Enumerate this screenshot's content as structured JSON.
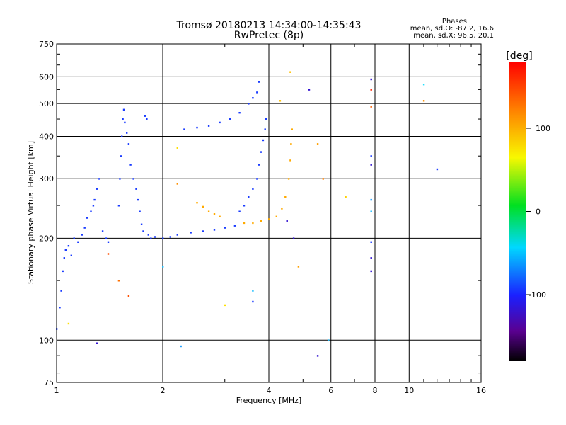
{
  "chart_data": {
    "type": "scatter",
    "title": "Tromsø 20180213 14:34:00-14:35:43",
    "subtitle": "RwPretec (8p)",
    "xlabel": "Frequency [MHz]",
    "ylabel": "Stationary phase Virtual Height [km]",
    "x_scale": "log2",
    "y_scale": "log",
    "xlim": [
      1,
      16
    ],
    "ylim": [
      75,
      750
    ],
    "x_ticks": [
      1,
      2,
      4,
      6,
      8,
      10,
      16
    ],
    "y_ticks": [
      75,
      100,
      200,
      300,
      400,
      500,
      600,
      750
    ],
    "grid": true,
    "legend": {
      "title": "Phases",
      "line1": "mean, sd,O:  -87.2, 16.6",
      "line2": "mean, sd,X:  96.5, 20.1",
      "placement": "top-right"
    },
    "colorbar": {
      "label": "[deg]",
      "range": [
        -180,
        180
      ],
      "ticks": [
        100,
        0,
        -100
      ],
      "colormap": "rainbow"
    },
    "series": [
      {
        "name": "O",
        "color": "#1a3cff",
        "points": [
          [
            1.0,
            108
          ],
          [
            1.02,
            125
          ],
          [
            1.03,
            140
          ],
          [
            1.04,
            160
          ],
          [
            1.05,
            175
          ],
          [
            1.06,
            185
          ],
          [
            1.08,
            190
          ],
          [
            1.1,
            178
          ],
          [
            1.12,
            200
          ],
          [
            1.15,
            195
          ],
          [
            1.18,
            205
          ],
          [
            1.2,
            215
          ],
          [
            1.22,
            230
          ],
          [
            1.25,
            240
          ],
          [
            1.27,
            250
          ],
          [
            1.28,
            260
          ],
          [
            1.3,
            280
          ],
          [
            1.32,
            300
          ],
          [
            1.35,
            210
          ],
          [
            1.38,
            200
          ],
          [
            1.4,
            195
          ],
          [
            1.5,
            250
          ],
          [
            1.51,
            300
          ],
          [
            1.52,
            350
          ],
          [
            1.53,
            400
          ],
          [
            1.54,
            450
          ],
          [
            1.55,
            480
          ],
          [
            1.56,
            440
          ],
          [
            1.58,
            410
          ],
          [
            1.6,
            380
          ],
          [
            1.62,
            330
          ],
          [
            1.65,
            300
          ],
          [
            1.68,
            280
          ],
          [
            1.7,
            260
          ],
          [
            1.72,
            240
          ],
          [
            1.74,
            220
          ],
          [
            1.76,
            210
          ],
          [
            1.78,
            460
          ],
          [
            1.8,
            450
          ],
          [
            1.82,
            205
          ],
          [
            1.85,
            200
          ],
          [
            1.9,
            202
          ],
          [
            2.0,
            200
          ],
          [
            2.1,
            202
          ],
          [
            2.2,
            205
          ],
          [
            2.4,
            208
          ],
          [
            2.6,
            210
          ],
          [
            2.8,
            212
          ],
          [
            3.0,
            215
          ],
          [
            3.2,
            218
          ],
          [
            2.3,
            420
          ],
          [
            2.5,
            425
          ],
          [
            2.7,
            430
          ],
          [
            2.9,
            440
          ],
          [
            3.1,
            450
          ],
          [
            3.3,
            470
          ],
          [
            3.5,
            500
          ],
          [
            3.6,
            520
          ],
          [
            3.7,
            540
          ],
          [
            3.75,
            580
          ],
          [
            3.3,
            240
          ],
          [
            3.4,
            250
          ],
          [
            3.5,
            265
          ],
          [
            3.6,
            280
          ],
          [
            3.7,
            300
          ],
          [
            3.75,
            330
          ],
          [
            3.8,
            360
          ],
          [
            3.85,
            390
          ],
          [
            3.9,
            420
          ],
          [
            3.92,
            450
          ]
        ]
      },
      {
        "name": "X",
        "color": "#ffaa00",
        "points": [
          [
            2.5,
            255
          ],
          [
            2.6,
            248
          ],
          [
            2.7,
            240
          ],
          [
            2.8,
            236
          ],
          [
            2.9,
            232
          ],
          [
            3.4,
            222
          ],
          [
            3.6,
            222
          ],
          [
            3.8,
            225
          ],
          [
            4.0,
            228
          ],
          [
            4.2,
            232
          ],
          [
            4.35,
            245
          ],
          [
            4.45,
            265
          ],
          [
            4.55,
            300
          ],
          [
            4.6,
            340
          ],
          [
            4.62,
            380
          ],
          [
            4.65,
            420
          ]
        ]
      }
    ],
    "extra_points": [
      {
        "x": 7.8,
        "y": 590,
        "c": "#3010d0"
      },
      {
        "x": 7.8,
        "y": 550,
        "c": "#ff2000"
      },
      {
        "x": 7.8,
        "y": 490,
        "c": "#ff6000"
      },
      {
        "x": 7.8,
        "y": 350,
        "c": "#2040ff"
      },
      {
        "x": 7.8,
        "y": 330,
        "c": "#3010d0"
      },
      {
        "x": 7.8,
        "y": 260,
        "c": "#20a0ff"
      },
      {
        "x": 7.8,
        "y": 240,
        "c": "#20c0ff"
      },
      {
        "x": 7.8,
        "y": 195,
        "c": "#2040ff"
      },
      {
        "x": 7.8,
        "y": 175,
        "c": "#3010d0"
      },
      {
        "x": 7.8,
        "y": 160,
        "c": "#3010d0"
      },
      {
        "x": 11.0,
        "y": 570,
        "c": "#20e0ff"
      },
      {
        "x": 11.0,
        "y": 510,
        "c": "#ff9000"
      },
      {
        "x": 12.0,
        "y": 320,
        "c": "#2040ff"
      },
      {
        "x": 5.2,
        "y": 550,
        "c": "#3010d0"
      },
      {
        "x": 4.6,
        "y": 620,
        "c": "#ffc000"
      },
      {
        "x": 4.3,
        "y": 510,
        "c": "#ffc000"
      },
      {
        "x": 5.5,
        "y": 380,
        "c": "#ffa000"
      },
      {
        "x": 5.7,
        "y": 300,
        "c": "#ff8000"
      },
      {
        "x": 5.5,
        "y": 90,
        "c": "#3010d0"
      },
      {
        "x": 5.9,
        "y": 100,
        "c": "#20c0ff"
      },
      {
        "x": 6.6,
        "y": 265,
        "c": "#ffd000"
      },
      {
        "x": 3.6,
        "y": 140,
        "c": "#20c0ff"
      },
      {
        "x": 3.6,
        "y": 130,
        "c": "#2040ff"
      },
      {
        "x": 3.0,
        "y": 127,
        "c": "#ffe000"
      },
      {
        "x": 2.2,
        "y": 370,
        "c": "#ffe000"
      },
      {
        "x": 2.2,
        "y": 290,
        "c": "#ff9000"
      },
      {
        "x": 2.25,
        "y": 96,
        "c": "#20a0ff"
      },
      {
        "x": 2.0,
        "y": 165,
        "c": "#20c0ff"
      },
      {
        "x": 1.6,
        "y": 135,
        "c": "#ff5000"
      },
      {
        "x": 1.4,
        "y": 180,
        "c": "#ff5000"
      },
      {
        "x": 1.5,
        "y": 150,
        "c": "#ff7000"
      },
      {
        "x": 1.3,
        "y": 98,
        "c": "#3010d0"
      },
      {
        "x": 1.08,
        "y": 112,
        "c": "#ffe000"
      },
      {
        "x": 4.85,
        "y": 165,
        "c": "#ffa000"
      },
      {
        "x": 4.7,
        "y": 200,
        "c": "#3010d0"
      },
      {
        "x": 4.5,
        "y": 225,
        "c": "#3010d0"
      }
    ]
  }
}
